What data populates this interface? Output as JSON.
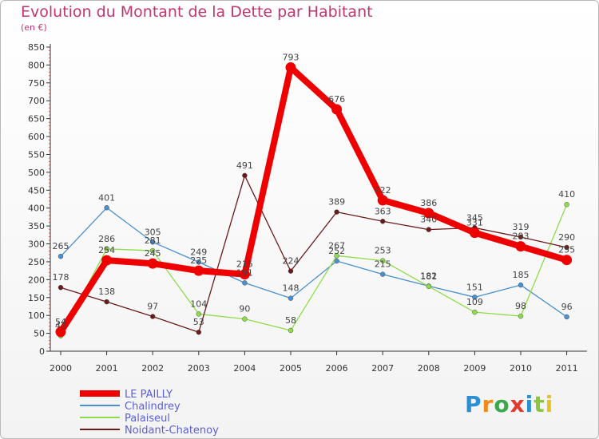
{
  "title": "Evolution du Montant de la Dette par Habitant",
  "unit": "(en €)",
  "logo": {
    "text": "Proxiti",
    "colors": [
      "#2b8fd6",
      "#f08a1c",
      "#3aa84a",
      "#e03a2f",
      "#2b8fd6",
      "#8bc43f",
      "#e8c21f"
    ]
  },
  "chart_data": {
    "type": "line",
    "title": "Evolution du Montant de la Dette par Habitant",
    "ylabel": "(en €)",
    "xlabel": "",
    "x": [
      "2000",
      "2001",
      "2002",
      "2003",
      "2004",
      "2005",
      "2006",
      "2007",
      "2008",
      "2009",
      "2010",
      "2011"
    ],
    "ylim": [
      0,
      850
    ],
    "yticks": [
      0,
      50,
      100,
      150,
      200,
      250,
      300,
      350,
      400,
      450,
      500,
      550,
      600,
      650,
      700,
      750,
      800,
      850
    ],
    "grid": false,
    "legend": "bottom-left",
    "series": [
      {
        "name": "LE PAILLY",
        "color": "#ee0000",
        "values": [
          54,
          254,
          245,
          225,
          215,
          793,
          676,
          422,
          386,
          331,
          293,
          255
        ]
      },
      {
        "name": "Chalindrey",
        "color": "#4a8fd0",
        "values": [
          265,
          401,
          305,
          249,
          191,
          148,
          252,
          215,
          182,
          151,
          185,
          96
        ]
      },
      {
        "name": "Palaiseul",
        "color": "#8fdc4a",
        "values": [
          43,
          286,
          281,
          104,
          90,
          58,
          267,
          253,
          181,
          109,
          98,
          410
        ]
      },
      {
        "name": "Noidant-Chatenoy",
        "color": "#6b1a1a",
        "values": [
          178,
          138,
          97,
          53,
          491,
          224,
          389,
          363,
          340,
          345,
          319,
          290
        ]
      }
    ]
  }
}
